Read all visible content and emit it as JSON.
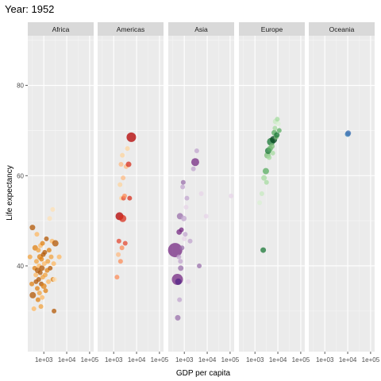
{
  "chart_data": {
    "type": "scatter",
    "title": "Year: 1952",
    "xlabel": "GDP per capita",
    "ylabel": "Life expectancy",
    "xscale": "log10",
    "xlim": [
      200,
      150000
    ],
    "ylim": [
      21,
      91
    ],
    "x_ticks": [
      {
        "value": 1000,
        "label": "1e+03"
      },
      {
        "value": 10000,
        "label": "1e+04"
      },
      {
        "value": 100000,
        "label": "1e+05"
      }
    ],
    "y_ticks": [
      {
        "value": 40,
        "label": "40"
      },
      {
        "value": 60,
        "label": "60"
      },
      {
        "value": 80,
        "label": "80"
      }
    ],
    "grid": true,
    "legend": "none",
    "facets": [
      {
        "name": "Africa",
        "points": [
          {
            "x": 250,
            "y": 42,
            "c": "#f1a340",
            "s": 3
          },
          {
            "x": 300,
            "y": 36,
            "c": "#e08214",
            "s": 3
          },
          {
            "x": 320,
            "y": 48.5,
            "c": "#b35806",
            "s": 3.5
          },
          {
            "x": 330,
            "y": 33.5,
            "c": "#b35806",
            "s": 4
          },
          {
            "x": 370,
            "y": 30.5,
            "c": "#fdb863",
            "s": 3
          },
          {
            "x": 400,
            "y": 39.5,
            "c": "#e08214",
            "s": 3
          },
          {
            "x": 420,
            "y": 44,
            "c": "#e08214",
            "s": 3.5
          },
          {
            "x": 450,
            "y": 38,
            "c": "#fdb863",
            "s": 3
          },
          {
            "x": 460,
            "y": 36.5,
            "c": "#b35806",
            "s": 3
          },
          {
            "x": 480,
            "y": 41,
            "c": "#f1a340",
            "s": 3
          },
          {
            "x": 500,
            "y": 47,
            "c": "#fdb863",
            "s": 3
          },
          {
            "x": 520,
            "y": 35,
            "c": "#e08214",
            "s": 3
          },
          {
            "x": 540,
            "y": 39,
            "c": "#b35806",
            "s": 3.5
          },
          {
            "x": 560,
            "y": 32.5,
            "c": "#e08214",
            "s": 3
          },
          {
            "x": 580,
            "y": 43.5,
            "c": "#f1a340",
            "s": 3
          },
          {
            "x": 600,
            "y": 37,
            "c": "#b35806",
            "s": 3
          },
          {
            "x": 620,
            "y": 40,
            "c": "#fdb863",
            "s": 3
          },
          {
            "x": 650,
            "y": 34,
            "c": "#f1a340",
            "s": 3
          },
          {
            "x": 680,
            "y": 42,
            "c": "#e08214",
            "s": 3.5
          },
          {
            "x": 700,
            "y": 38.5,
            "c": "#b35806",
            "s": 3
          },
          {
            "x": 720,
            "y": 44.5,
            "c": "#fdb863",
            "s": 3
          },
          {
            "x": 750,
            "y": 31,
            "c": "#f1a340",
            "s": 3
          },
          {
            "x": 780,
            "y": 36,
            "c": "#b35806",
            "s": 3
          },
          {
            "x": 800,
            "y": 41.5,
            "c": "#e08214",
            "s": 3
          },
          {
            "x": 830,
            "y": 39.5,
            "c": "#b35806",
            "s": 3.5
          },
          {
            "x": 850,
            "y": 33,
            "c": "#fdb863",
            "s": 3
          },
          {
            "x": 880,
            "y": 45,
            "c": "#e08214",
            "s": 3
          },
          {
            "x": 900,
            "y": 37.5,
            "c": "#f1a340",
            "s": 3
          },
          {
            "x": 950,
            "y": 42.5,
            "c": "#b35806",
            "s": 3
          },
          {
            "x": 1000,
            "y": 35.5,
            "c": "#e08214",
            "s": 3.5
          },
          {
            "x": 1050,
            "y": 40.5,
            "c": "#fdb863",
            "s": 3
          },
          {
            "x": 1100,
            "y": 43,
            "c": "#b35806",
            "s": 3
          },
          {
            "x": 1150,
            "y": 38,
            "c": "#f1a340",
            "s": 3
          },
          {
            "x": 1200,
            "y": 34.5,
            "c": "#e08214",
            "s": 3
          },
          {
            "x": 1300,
            "y": 46,
            "c": "#b35806",
            "s": 3
          },
          {
            "x": 1400,
            "y": 39,
            "c": "#e08214",
            "s": 3
          },
          {
            "x": 1500,
            "y": 41,
            "c": "#f1a340",
            "s": 3
          },
          {
            "x": 1600,
            "y": 36.5,
            "c": "#fdb863",
            "s": 3
          },
          {
            "x": 1700,
            "y": 43.5,
            "c": "#e08214",
            "s": 3
          },
          {
            "x": 1900,
            "y": 39.5,
            "c": "#b35806",
            "s": 3
          },
          {
            "x": 2100,
            "y": 42,
            "c": "#f1a340",
            "s": 3
          },
          {
            "x": 2300,
            "y": 45.5,
            "c": "#fdb863",
            "s": 3
          },
          {
            "x": 2450,
            "y": 52.5,
            "c": "#fee0b6",
            "s": 3
          },
          {
            "x": 2500,
            "y": 37,
            "c": "#e08214",
            "s": 3
          },
          {
            "x": 2700,
            "y": 40.5,
            "c": "#fdb863",
            "s": 3
          },
          {
            "x": 2800,
            "y": 30,
            "c": "#b35806",
            "s": 3
          },
          {
            "x": 3000,
            "y": 37,
            "c": "#fee0b6",
            "s": 3
          },
          {
            "x": 3200,
            "y": 45,
            "c": "#b35806",
            "s": 4
          },
          {
            "x": 1800,
            "y": 50.5,
            "c": "#fee0b6",
            "s": 3
          },
          {
            "x": 4700,
            "y": 42,
            "c": "#fdb863",
            "s": 3
          }
        ]
      },
      {
        "name": "Americas",
        "points": [
          {
            "x": 1400,
            "y": 37.5,
            "c": "#fc8d59",
            "s": 3
          },
          {
            "x": 1600,
            "y": 42.5,
            "c": "#fdbb84",
            "s": 3
          },
          {
            "x": 1700,
            "y": 45.5,
            "c": "#e34a33",
            "s": 3
          },
          {
            "x": 1800,
            "y": 51,
            "c": "#b30000",
            "s": 5
          },
          {
            "x": 1900,
            "y": 58,
            "c": "#fdd49e",
            "s": 3
          },
          {
            "x": 2000,
            "y": 41,
            "c": "#fc8d59",
            "s": 3
          },
          {
            "x": 2100,
            "y": 62.5,
            "c": "#fdbb84",
            "s": 3
          },
          {
            "x": 2200,
            "y": 55,
            "c": "#fdd49e",
            "s": 3
          },
          {
            "x": 2300,
            "y": 44,
            "c": "#fc8d59",
            "s": 3
          },
          {
            "x": 2400,
            "y": 64.5,
            "c": "#fdd49e",
            "s": 3
          },
          {
            "x": 2500,
            "y": 50.5,
            "c": "#d7301f",
            "s": 4.5
          },
          {
            "x": 2600,
            "y": 59.5,
            "c": "#fdbb84",
            "s": 3
          },
          {
            "x": 2700,
            "y": 55,
            "c": "#e34a33",
            "s": 3
          },
          {
            "x": 3000,
            "y": 55.5,
            "c": "#fc8d59",
            "s": 3
          },
          {
            "x": 3200,
            "y": 45,
            "c": "#e34a33",
            "s": 3
          },
          {
            "x": 3500,
            "y": 62,
            "c": "#fdbb84",
            "s": 3
          },
          {
            "x": 4000,
            "y": 66,
            "c": "#fdd49e",
            "s": 3
          },
          {
            "x": 5000,
            "y": 55,
            "c": "#d7301f",
            "s": 3
          },
          {
            "x": 4500,
            "y": 62.5,
            "c": "#d7301f",
            "s": 3.5
          },
          {
            "x": 5900,
            "y": 68.5,
            "c": "#b30000",
            "s": 6
          }
        ]
      },
      {
        "name": "Asia",
        "points": [
          {
            "x": 400,
            "y": 43.5,
            "c": "#762a83",
            "s": 9
          },
          {
            "x": 500,
            "y": 37,
            "c": "#762a83",
            "s": 7
          },
          {
            "x": 520,
            "y": 28.5,
            "c": "#9970ab",
            "s": 3.5
          },
          {
            "x": 550,
            "y": 36.5,
            "c": "#542788",
            "s": 4
          },
          {
            "x": 580,
            "y": 42,
            "c": "#c2a5cf",
            "s": 3
          },
          {
            "x": 600,
            "y": 47.5,
            "c": "#762a83",
            "s": 3.5
          },
          {
            "x": 620,
            "y": 32.5,
            "c": "#c2a5cf",
            "s": 3
          },
          {
            "x": 650,
            "y": 51,
            "c": "#9970ab",
            "s": 4
          },
          {
            "x": 680,
            "y": 41,
            "c": "#c2a5cf",
            "s": 3
          },
          {
            "x": 700,
            "y": 39.5,
            "c": "#9970ab",
            "s": 3.5
          },
          {
            "x": 750,
            "y": 48,
            "c": "#762a83",
            "s": 3
          },
          {
            "x": 800,
            "y": 44,
            "c": "#9970ab",
            "s": 3
          },
          {
            "x": 850,
            "y": 57.5,
            "c": "#c2a5cf",
            "s": 3
          },
          {
            "x": 900,
            "y": 58.5,
            "c": "#9970ab",
            "s": 3
          },
          {
            "x": 950,
            "y": 50.5,
            "c": "#c2a5cf",
            "s": 3.5
          },
          {
            "x": 1000,
            "y": 46,
            "c": "#e7d4e8",
            "s": 3
          },
          {
            "x": 1100,
            "y": 47,
            "c": "#c2a5cf",
            "s": 3
          },
          {
            "x": 1200,
            "y": 53,
            "c": "#e7d4e8",
            "s": 3
          },
          {
            "x": 1300,
            "y": 55,
            "c": "#c2a5cf",
            "s": 3
          },
          {
            "x": 1500,
            "y": 36.5,
            "c": "#e7d4e8",
            "s": 3
          },
          {
            "x": 1800,
            "y": 45.5,
            "c": "#c2a5cf",
            "s": 3
          },
          {
            "x": 2500,
            "y": 61.5,
            "c": "#c2a5cf",
            "s": 3
          },
          {
            "x": 3000,
            "y": 63,
            "c": "#762a83",
            "s": 5
          },
          {
            "x": 3500,
            "y": 65.5,
            "c": "#c2a5cf",
            "s": 3
          },
          {
            "x": 4500,
            "y": 40,
            "c": "#9970ab",
            "s": 3
          },
          {
            "x": 5500,
            "y": 56,
            "c": "#e7d4e8",
            "s": 3
          },
          {
            "x": 9000,
            "y": 51,
            "c": "#e7d4e8",
            "s": 3
          },
          {
            "x": 110000,
            "y": 55.5,
            "c": "#e7d4e8",
            "s": 3
          }
        ]
      },
      {
        "name": "Europe",
        "points": [
          {
            "x": 1600,
            "y": 54,
            "c": "#d9f0d3",
            "s": 3
          },
          {
            "x": 2000,
            "y": 56,
            "c": "#c7e9c0",
            "s": 3
          },
          {
            "x": 2300,
            "y": 43.5,
            "c": "#1b7837",
            "s": 3.5
          },
          {
            "x": 2500,
            "y": 59.5,
            "c": "#a6dba0",
            "s": 3.5
          },
          {
            "x": 3000,
            "y": 61,
            "c": "#5aae61",
            "s": 4
          },
          {
            "x": 3200,
            "y": 58.5,
            "c": "#a6dba0",
            "s": 3
          },
          {
            "x": 3500,
            "y": 64.5,
            "c": "#7fbf7b",
            "s": 4
          },
          {
            "x": 3800,
            "y": 65.5,
            "c": "#1b7837",
            "s": 4
          },
          {
            "x": 4200,
            "y": 64,
            "c": "#a6dba0",
            "s": 3
          },
          {
            "x": 4600,
            "y": 66,
            "c": "#5aae61",
            "s": 3.5
          },
          {
            "x": 5000,
            "y": 67.5,
            "c": "#1b7837",
            "s": 5
          },
          {
            "x": 5500,
            "y": 66.5,
            "c": "#7fbf7b",
            "s": 3.5
          },
          {
            "x": 6000,
            "y": 65,
            "c": "#a6dba0",
            "s": 3
          },
          {
            "x": 6500,
            "y": 68,
            "c": "#00441b",
            "s": 4.5
          },
          {
            "x": 7000,
            "y": 69.5,
            "c": "#5aae61",
            "s": 3.5
          },
          {
            "x": 7500,
            "y": 70.5,
            "c": "#a6dba0",
            "s": 3
          },
          {
            "x": 8000,
            "y": 72,
            "c": "#c7e9c0",
            "s": 3.5
          },
          {
            "x": 8500,
            "y": 68.5,
            "c": "#7fbf7b",
            "s": 3
          },
          {
            "x": 9000,
            "y": 69,
            "c": "#1b7837",
            "s": 3.5
          },
          {
            "x": 9500,
            "y": 72.5,
            "c": "#a6dba0",
            "s": 3
          },
          {
            "x": 10500,
            "y": 71.5,
            "c": "#d9f0d3",
            "s": 3
          },
          {
            "x": 11500,
            "y": 70,
            "c": "#5aae61",
            "s": 3
          }
        ]
      },
      {
        "name": "Oceania",
        "points": [
          {
            "x": 10000,
            "y": 69.2,
            "c": "#2c7bb6",
            "s": 3.5
          },
          {
            "x": 10600,
            "y": 69.4,
            "c": "#4575b4",
            "s": 3.5
          }
        ]
      }
    ]
  }
}
